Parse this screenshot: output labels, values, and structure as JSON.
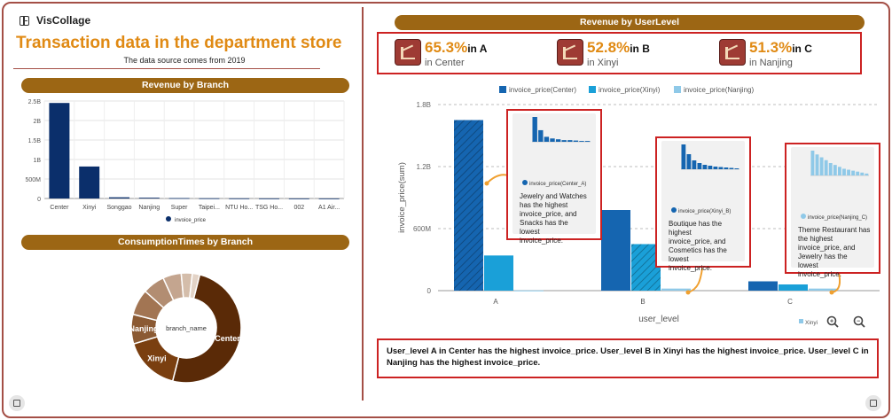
{
  "app": {
    "title": "VisCollage",
    "logo_icon": "layout-icon"
  },
  "header": {
    "title": "Transaction data in the department store",
    "subtitle": "The data source comes from 2019"
  },
  "panels": {
    "branch_revenue": {
      "header": "Revenue by Branch"
    },
    "consumption": {
      "header": "ConsumptionTimes by Branch"
    },
    "userlevel": {
      "header": "Revenue by UserLevel"
    }
  },
  "kpis": [
    {
      "value": "65.3%",
      "level": "in A",
      "location": "in Center",
      "icon": "chart-growth-icon"
    },
    {
      "value": "52.8%",
      "level": "in B",
      "location": "in Xinyi",
      "icon": "chart-growth-icon"
    },
    {
      "value": "51.3%",
      "level": "in C",
      "location": "in Nanjing",
      "icon": "chart-growth-icon"
    }
  ],
  "summary": "User_level A in Center has the highest invoice_price. User_level B in Xinyi has the highest invoice_price. User_level C in Nanjing has the highest invoice_price.",
  "insets": [
    {
      "legend": "invoice_price(Center_A)",
      "text": "Jewelry and Watches has the highest invoice_price, and Snacks has the lowest invoice_price."
    },
    {
      "legend": "invoice_price(Xinyi_B)",
      "text": "Boutique has the highest invoice_price, and Cosmetics has the lowest invoice_price."
    },
    {
      "legend": "invoice_price(Nanjing_C)",
      "text": "Theme Restaurant has the highest invoice_price, and Jewelry has the lowest invoice_price."
    }
  ],
  "toolbar": {
    "save_icon": "save-icon",
    "expand_icon": "expand-icon",
    "zoom_in_icon": "zoom-in-icon",
    "zoom_out_icon": "zoom-out-icon",
    "mini_legend": "Xinyi"
  },
  "colors": {
    "accent": "#e08a14",
    "header_bar": "#9c6614",
    "border": "#a44f46",
    "highlight": "#cc2222",
    "navy": "#0b2f6b",
    "blue_a": "#1565b0",
    "blue_b": "#1aa0d8",
    "blue_c": "#8fc9e8"
  },
  "chart_data": [
    {
      "type": "bar",
      "title": "Revenue by Branch",
      "categories": [
        "Center",
        "Xinyi",
        "Songgao",
        "Nanjing",
        "Super",
        "Taipei...",
        "NTU Ho...",
        "TSG Ho...",
        "002",
        "A1 Air..."
      ],
      "series": [
        {
          "name": "invoice_price",
          "values": [
            2.45,
            0.82,
            0.03,
            0.02,
            0.01,
            0.005,
            0.003,
            0.002,
            0.001,
            0.001
          ]
        }
      ],
      "yticks": [
        "0",
        "500M",
        "1B",
        "1.5B",
        "2B",
        "2.5B"
      ],
      "ylim": [
        0,
        2.5
      ],
      "legend": "bottom",
      "grid": true
    },
    {
      "type": "pie",
      "title": "ConsumptionTimes by Branch",
      "center_label": "branch_name",
      "labels": [
        "Center",
        "Xinyi",
        "Nanjing",
        "",
        "",
        "",
        "",
        ""
      ],
      "values": [
        46,
        15,
        8,
        7,
        6,
        5,
        3,
        2
      ]
    },
    {
      "type": "bar",
      "title": "Revenue by UserLevel",
      "categories": [
        "A",
        "B",
        "C"
      ],
      "xlabel": "user_level",
      "ylabel": "invoice_price(sum)",
      "yticks": [
        "0",
        "600M",
        "1.2B",
        "1.8B"
      ],
      "ylim": [
        0,
        1.8
      ],
      "series": [
        {
          "name": "invoice_price(Center)",
          "values": [
            1.65,
            0.78,
            0.09
          ]
        },
        {
          "name": "invoice_price(Xinyi)",
          "values": [
            0.34,
            0.45,
            0.06
          ]
        },
        {
          "name": "invoice_price(Nanjing)",
          "values": [
            0.002,
            0.02,
            0.02
          ]
        }
      ],
      "legend": "top",
      "grid": true
    }
  ]
}
